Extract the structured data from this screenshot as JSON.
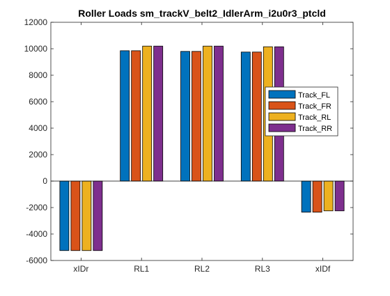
{
  "chart_data": {
    "type": "bar",
    "title": "Roller Loads sm_trackV_belt2_IdlerArm_i2u0r3_ptcld",
    "xlabel": "",
    "ylabel": "",
    "categories": [
      "xIDr",
      "RL1",
      "RL2",
      "RL3",
      "xIDf"
    ],
    "ylim": [
      -6000,
      12000
    ],
    "yticks": [
      -6000,
      -4000,
      -2000,
      0,
      2000,
      4000,
      6000,
      8000,
      10000,
      12000
    ],
    "ytick_labels": [
      "-6000",
      "-4000",
      "-2000",
      "0",
      "2000",
      "4000",
      "6000",
      "8000",
      "10000",
      "12000"
    ],
    "grid": false,
    "legend_position": "right",
    "series": [
      {
        "name": "Track_FL",
        "color": "#0072BD",
        "values": [
          -5250,
          9850,
          9800,
          9750,
          -2350
        ]
      },
      {
        "name": "Track_FR",
        "color": "#D95319",
        "values": [
          -5250,
          9850,
          9800,
          9750,
          -2350
        ]
      },
      {
        "name": "Track_RL",
        "color": "#EDB120",
        "values": [
          -5250,
          10200,
          10200,
          10150,
          -2250
        ]
      },
      {
        "name": "Track_RR",
        "color": "#7E2F8E",
        "values": [
          -5250,
          10200,
          10200,
          10150,
          -2250
        ]
      }
    ]
  }
}
